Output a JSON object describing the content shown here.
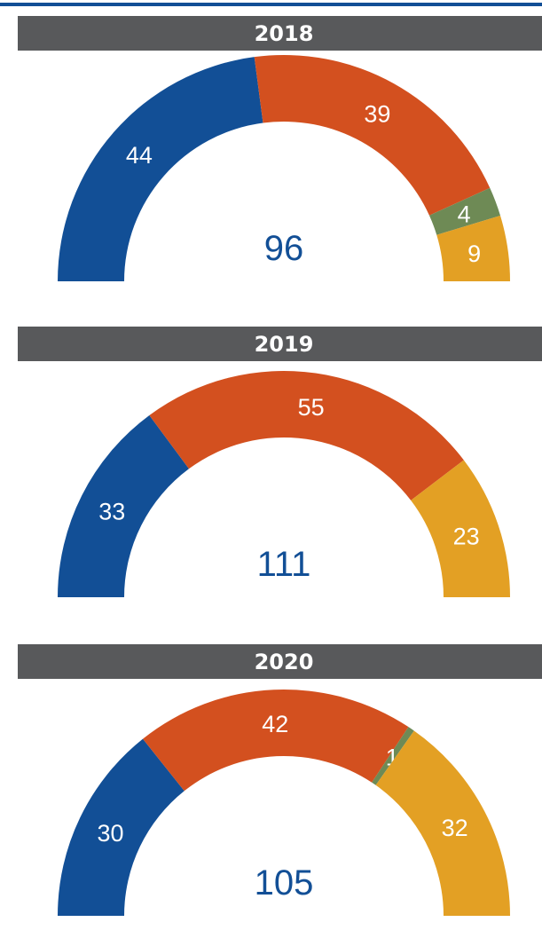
{
  "chart_data": [
    {
      "type": "half-donut",
      "title": "2018",
      "values": [
        44,
        39,
        4,
        9
      ],
      "colors": [
        "#124f96",
        "#d3501f",
        "#6e8a55",
        "#e3a024"
      ],
      "total": 96
    },
    {
      "type": "half-donut",
      "title": "2019",
      "values": [
        33,
        55,
        23
      ],
      "colors": [
        "#124f96",
        "#d3501f",
        "#e3a024"
      ],
      "total": 111
    },
    {
      "type": "half-donut",
      "title": "2020",
      "values": [
        30,
        42,
        1,
        32
      ],
      "colors": [
        "#124f96",
        "#d3501f",
        "#6e8a55",
        "#e3a024"
      ],
      "total": 105
    }
  ]
}
